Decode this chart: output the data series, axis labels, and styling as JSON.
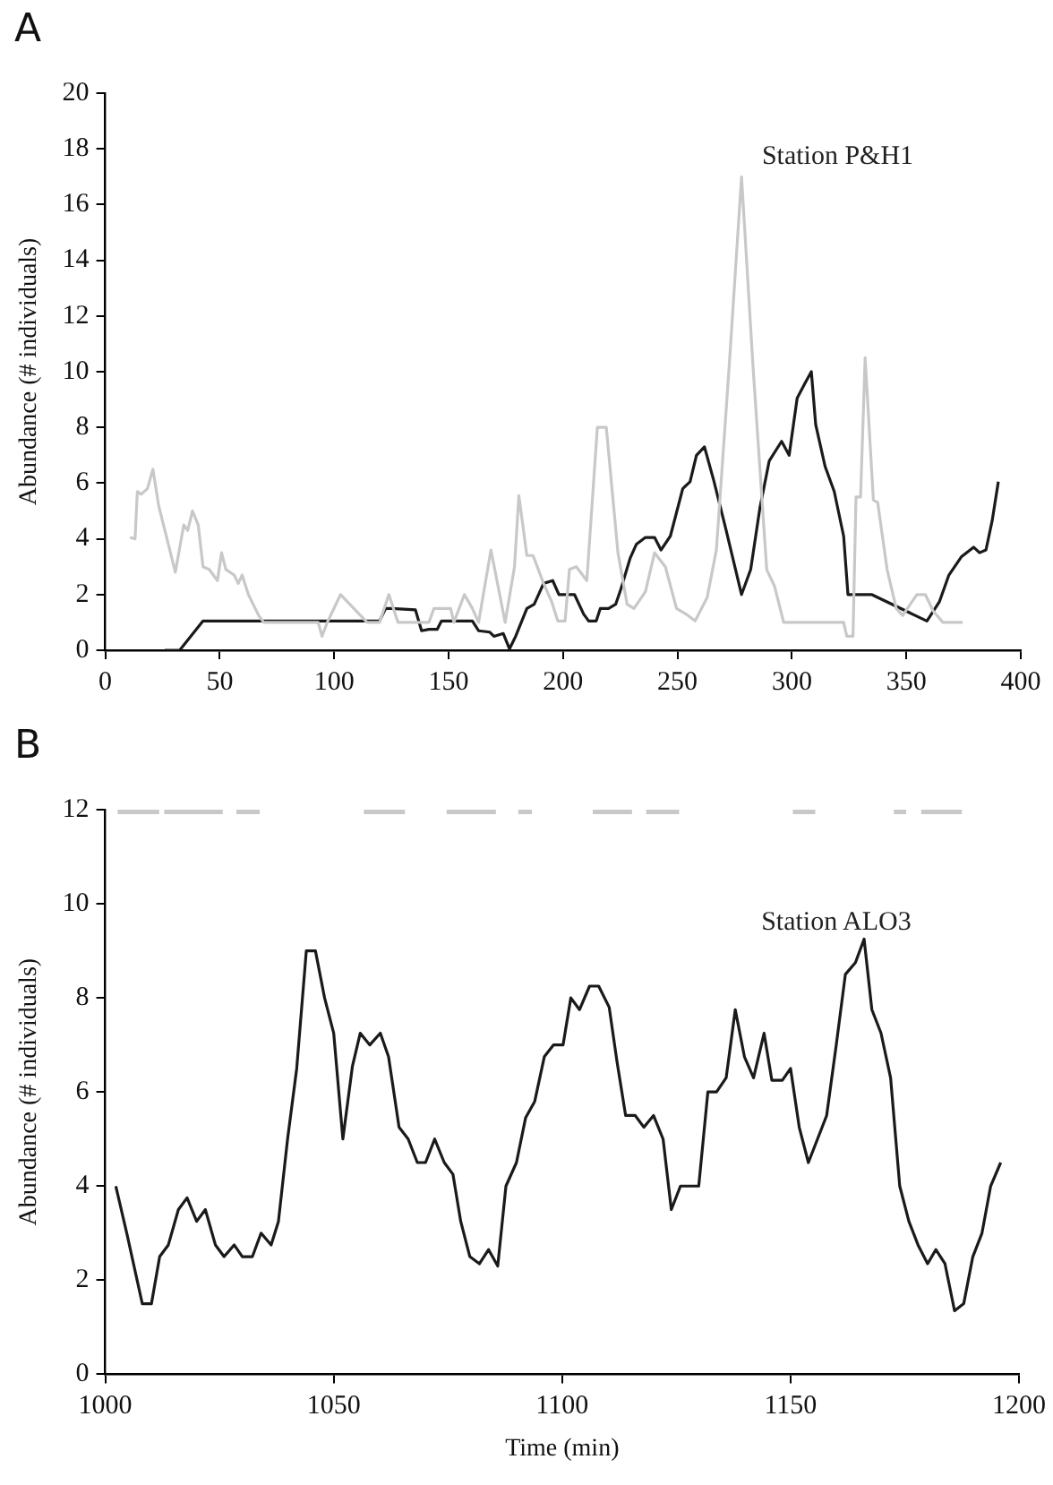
{
  "chart_data": [
    {
      "type": "line",
      "title": "A",
      "ylabel": "Abundance (# individuals)",
      "xlim": [
        0,
        400
      ],
      "xticks": [
        0,
        50,
        100,
        150,
        200,
        250,
        300,
        350,
        400
      ],
      "ylim": [
        0,
        20
      ],
      "yticks": [
        0,
        2,
        4,
        6,
        8,
        10,
        12,
        14,
        16,
        18,
        20
      ],
      "grid": false,
      "legend": false,
      "annotations": [
        "Station P&H1"
      ],
      "series": [
        {
          "color": "#c8c8c8",
          "x": [
            10.8,
            13,
            14,
            15.7,
            18.4,
            20.8,
            23.3,
            30.6,
            34.3,
            36,
            38.1,
            40.6,
            42.7,
            45.4,
            49,
            50.8,
            52.7,
            56.3,
            58.1,
            59.8,
            62.5,
            67,
            69.2,
            93,
            94.7,
            97,
            102.8,
            114.4,
            119.8,
            123.9,
            127.9,
            141.4,
            143.6,
            150.9,
            152.3,
            156.9,
            160.4,
            163.1,
            168.5,
            174.7,
            178.8,
            180.7,
            184.2,
            186.9,
            191.5,
            195,
            197.7,
            200.9,
            202.8,
            205.8,
            210.4,
            215,
            218.9,
            224,
            228,
            231,
            236,
            240,
            244.7,
            249.6,
            253.7,
            257.7,
            263,
            267,
            272.6,
            278,
            283,
            289,
            292.4,
            296.4,
            322.6,
            324,
            326.7,
            328,
            330,
            332,
            335.6,
            337.5,
            341.6,
            345.6,
            348.4,
            354.6,
            358.3,
            361.8,
            366,
            374.6
          ],
          "values": [
            4.05,
            4,
            5.7,
            5.6,
            5.8,
            6.5,
            5.2,
            2.8,
            4.5,
            4.3,
            5,
            4.5,
            3,
            2.9,
            2.5,
            3.5,
            2.9,
            2.7,
            2.4,
            2.7,
            2,
            1.25,
            1,
            1,
            0.5,
            1,
            2,
            1,
            1,
            2,
            1,
            1,
            1.5,
            1.5,
            1,
            2,
            1.5,
            1,
            3.6,
            1,
            3,
            5.55,
            3.4,
            3.4,
            2.4,
            1.75,
            1.05,
            1.05,
            2.9,
            3,
            2.5,
            8,
            8,
            3.5,
            1.65,
            1.5,
            2.1,
            3.5,
            3,
            1.5,
            1.3,
            1.05,
            1.9,
            3.6,
            10.2,
            17,
            10.2,
            2.9,
            2.3,
            1,
            1,
            0.5,
            0.5,
            5.5,
            5.5,
            10.5,
            5.4,
            5.3,
            2.9,
            1.5,
            1.25,
            2,
            2,
            1.4,
            1,
            1
          ]
        },
        {
          "color": "#1a1a1a",
          "x": [
            26,
            32.5,
            42.7,
            119.8,
            122.5,
            125.2,
            135.5,
            138.2,
            141.4,
            145,
            146.9,
            160.4,
            163.1,
            168,
            169.8,
            173.9,
            176.6,
            179.3,
            184.2,
            187.4,
            191.5,
            195.5,
            198.2,
            205,
            209,
            211.2,
            214.5,
            216.3,
            219.9,
            223,
            225.3,
            229.3,
            232,
            236,
            240,
            242.8,
            246.9,
            252.3,
            255.5,
            258.3,
            261.8,
            266,
            271.3,
            278,
            282,
            286,
            290.1,
            295.5,
            298.8,
            302.3,
            305.8,
            308.5,
            310.4,
            314.5,
            318.5,
            322.6,
            324.5,
            334.8,
            359,
            364.5,
            368.6,
            374,
            379.4,
            382,
            384.8,
            387.5,
            390.2
          ],
          "values": [
            0,
            0,
            1.05,
            1.05,
            1.5,
            1.5,
            1.45,
            0.7,
            0.75,
            0.75,
            1.05,
            1.05,
            0.7,
            0.65,
            0.5,
            0.6,
            0.05,
            0.5,
            1.5,
            1.65,
            2.4,
            2.5,
            2,
            2,
            1.3,
            1.05,
            1.05,
            1.5,
            1.5,
            1.65,
            2.2,
            3.3,
            3.8,
            4.05,
            4.05,
            3.6,
            4.1,
            5.8,
            6.05,
            7,
            7.3,
            6.05,
            4.3,
            2,
            2.9,
            5.1,
            6.8,
            7.5,
            7,
            9.05,
            9.6,
            10,
            8.1,
            6.6,
            5.7,
            4.1,
            2,
            2,
            1.05,
            1.75,
            2.7,
            3.35,
            3.7,
            3.5,
            3.6,
            4.65,
            6.05
          ]
        }
      ]
    },
    {
      "type": "line",
      "title": "B",
      "xlabel": "Time (min)",
      "ylabel": "Abundance (# individuals)",
      "xlim": [
        1000,
        1200
      ],
      "xticks": [
        1000,
        1050,
        1100,
        1150,
        1200
      ],
      "ylim": [
        0,
        12
      ],
      "yticks": [
        0,
        2,
        4,
        6,
        8,
        10,
        12
      ],
      "grid": false,
      "legend": false,
      "annotations": [
        "Station ALO3"
      ],
      "series": [
        {
          "color": "#1a1a1a",
          "x": [
            1002.3,
            1004.7,
            1008.1,
            1010.1,
            1011.9,
            1013.8,
            1016,
            1017.9,
            1020,
            1021.9,
            1024.1,
            1026,
            1028.2,
            1030,
            1032.2,
            1034.1,
            1036.3,
            1037.9,
            1039.9,
            1041.9,
            1044,
            1046,
            1048,
            1050,
            1052,
            1054.1,
            1055.8,
            1057.9,
            1060.2,
            1062,
            1064.3,
            1066.3,
            1068.3,
            1070.1,
            1072.1,
            1074.2,
            1076.1,
            1077.8,
            1079.8,
            1081.9,
            1083.9,
            1085.9,
            1087.7,
            1090,
            1092,
            1094,
            1096.1,
            1098.1,
            1100.2,
            1101.9,
            1103.8,
            1106,
            1108,
            1110.3,
            1112,
            1113.9,
            1116,
            1117.9,
            1120,
            1122.1,
            1123.9,
            1125.9,
            1129.9,
            1131.9,
            1133.8,
            1135.9,
            1137.9,
            1139.9,
            1141.9,
            1144.2,
            1145.9,
            1148.2,
            1150,
            1151.9,
            1153.9,
            1155.9,
            1157.9,
            1160,
            1162,
            1164.2,
            1166.1,
            1167.8,
            1169.8,
            1171.9,
            1173.9,
            1175.9,
            1177.9,
            1180,
            1181.8,
            1183.8,
            1185.9,
            1187.9,
            1189.9,
            1191.9,
            1193.8,
            1196
          ],
          "values": [
            4,
            3,
            1.5,
            1.5,
            2.5,
            2.75,
            3.5,
            3.75,
            3.25,
            3.5,
            2.75,
            2.5,
            2.75,
            2.5,
            2.5,
            3,
            2.75,
            3.25,
            5,
            6.5,
            9,
            9,
            8,
            7.25,
            5,
            6.55,
            7.25,
            7,
            7.25,
            6.75,
            5.25,
            5,
            4.5,
            4.5,
            5,
            4.5,
            4.25,
            3.25,
            2.5,
            2.35,
            2.65,
            2.3,
            4,
            4.5,
            5.45,
            5.8,
            6.75,
            7,
            7,
            8,
            7.75,
            8.25,
            8.25,
            7.8,
            6.65,
            5.5,
            5.5,
            5.25,
            5.5,
            5,
            3.5,
            4,
            4,
            6,
            6,
            6.3,
            7.75,
            6.75,
            6.3,
            7.25,
            6.25,
            6.25,
            6.5,
            5.25,
            4.5,
            5,
            5.5,
            7,
            8.5,
            8.75,
            9.25,
            7.75,
            7.25,
            6.3,
            4,
            3.25,
            2.75,
            2.35,
            2.65,
            2.35,
            1.35,
            1.5,
            2.5,
            3,
            4,
            4.5
          ]
        },
        {
          "color": "#c8c8c8",
          "x": [
            1002.7,
            1011.8,
            1012.3,
            1012.9,
            1025.7,
            1027,
            1028.7,
            1033.8,
            1045,
            1056.6,
            1065.6,
            1070,
            1074.7,
            1085.5,
            1088,
            1090.4,
            1093.4,
            1100,
            1106.7,
            1115.3,
            1117,
            1118.4,
            1125.6,
            1140,
            1150.5,
            1155.4,
            1165,
            1172.6,
            1175.3,
            1177,
            1178.6,
            1187.5
          ],
          "values": [
            12,
            12,
            null,
            12,
            12,
            null,
            12,
            12,
            null,
            12,
            12,
            null,
            12,
            12,
            null,
            12,
            12,
            null,
            12,
            12,
            null,
            12,
            12,
            null,
            12,
            12,
            null,
            12,
            12,
            null,
            12,
            12
          ]
        }
      ]
    }
  ]
}
